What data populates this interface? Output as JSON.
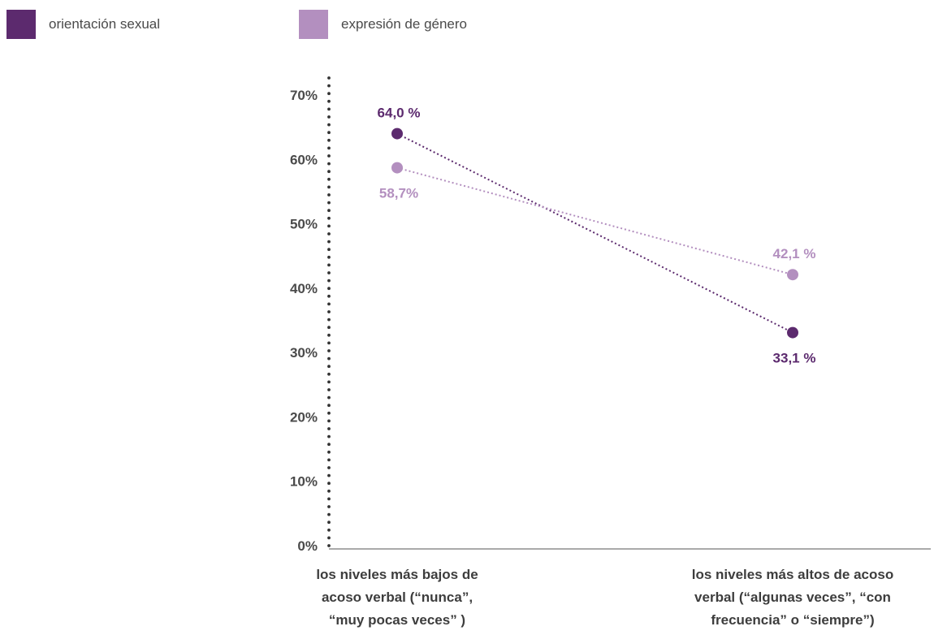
{
  "legend": [
    {
      "name": "orientación sexual",
      "color": "#5c2a6e"
    },
    {
      "name": "expresión de género",
      "color": "#b38fbf"
    }
  ],
  "chart_data": {
    "type": "line",
    "title": "",
    "xlabel": "",
    "ylabel": "",
    "ylim": [
      0,
      70
    ],
    "yticks": [
      0,
      10,
      20,
      30,
      40,
      50,
      60,
      70
    ],
    "ytick_labels": [
      "0%",
      "10%",
      "20%",
      "30%",
      "40%",
      "50%",
      "60%",
      "70%"
    ],
    "categories": [
      [
        "los niveles más bajos de",
        "acoso verbal (“nunca”,",
        "“muy pocas veces” )"
      ],
      [
        "los niveles más altos de acoso",
        "verbal (“algunas veces”, “con",
        "frecuencia” o “siempre”)"
      ]
    ],
    "series": [
      {
        "name": "orientación sexual",
        "color": "#5c2a6e",
        "values": [
          64.0,
          33.1
        ],
        "labels": [
          "64,0 %",
          "33,1 %"
        ]
      },
      {
        "name": "expresión de género",
        "color": "#b38fbf",
        "values": [
          58.7,
          42.1
        ],
        "labels": [
          "58,7%",
          "42,1 %"
        ]
      }
    ],
    "grid": false,
    "legend_position": "top-left"
  }
}
